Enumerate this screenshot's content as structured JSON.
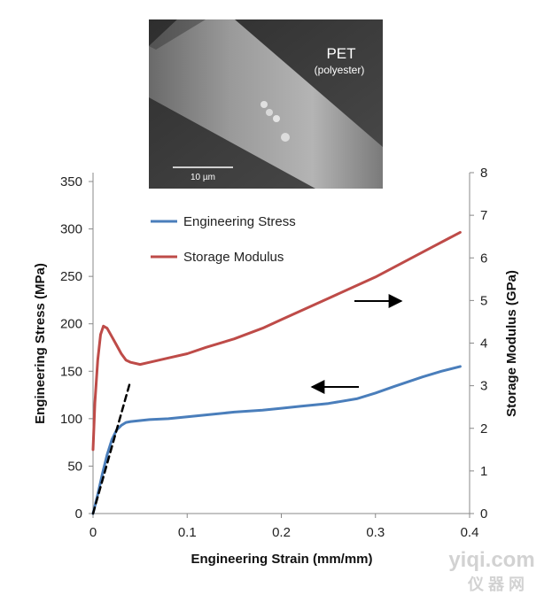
{
  "inset_image": {
    "material_label": "PET",
    "material_sublabel": "(polyester)",
    "scale_bar_label": "10 µm"
  },
  "watermark": {
    "line1": "yiqi.com",
    "line2": "仪 器 网"
  },
  "chart_data": {
    "type": "line",
    "xlabel": "Engineering Strain (mm/mm)",
    "ylabel_left": "Engineering Stress (MPa)",
    "ylabel_right": "Storage Modulus (GPa)",
    "xlim": [
      0,
      0.4
    ],
    "ylim_left": [
      0,
      350
    ],
    "ylim_right": [
      0,
      8
    ],
    "x_ticks": [
      "0",
      "0.1",
      "0.2",
      "0.3",
      "0.4"
    ],
    "y_ticks_left": [
      "0",
      "50",
      "100",
      "150",
      "200",
      "250",
      "300",
      "350"
    ],
    "y_ticks_right": [
      "0",
      "1",
      "2",
      "3",
      "4",
      "5",
      "6",
      "7",
      "8"
    ],
    "grid": false,
    "legend_position": "top-left",
    "series": [
      {
        "name": "Engineering Stress",
        "axis": "left",
        "color": "#4a7ebb",
        "x": [
          0,
          0.005,
          0.01,
          0.015,
          0.02,
          0.025,
          0.03,
          0.035,
          0.04,
          0.05,
          0.06,
          0.08,
          0.1,
          0.12,
          0.15,
          0.18,
          0.2,
          0.22,
          0.25,
          0.28,
          0.3,
          0.32,
          0.35,
          0.37,
          0.39
        ],
        "y": [
          0,
          20,
          42,
          62,
          78,
          88,
          93,
          96,
          97,
          98,
          99,
          100,
          102,
          104,
          107,
          109,
          111,
          113,
          116,
          121,
          127,
          134,
          144,
          150,
          155
        ]
      },
      {
        "name": "Storage Modulus",
        "axis": "right",
        "color": "#be4b48",
        "x": [
          0,
          0.002,
          0.005,
          0.008,
          0.011,
          0.015,
          0.02,
          0.025,
          0.03,
          0.035,
          0.04,
          0.05,
          0.06,
          0.08,
          0.1,
          0.12,
          0.15,
          0.18,
          0.2,
          0.22,
          0.25,
          0.28,
          0.3,
          0.33,
          0.36,
          0.39
        ],
        "y": [
          1.5,
          2.6,
          3.6,
          4.2,
          4.4,
          4.35,
          4.15,
          3.95,
          3.75,
          3.6,
          3.55,
          3.5,
          3.55,
          3.65,
          3.75,
          3.9,
          4.1,
          4.35,
          4.55,
          4.75,
          5.05,
          5.35,
          5.55,
          5.9,
          6.25,
          6.6
        ]
      },
      {
        "name": "",
        "axis": "left",
        "color": "#000000",
        "style": "dashed",
        "x": [
          0,
          0.039
        ],
        "y": [
          0,
          137
        ]
      }
    ],
    "annotations": [
      {
        "type": "arrow",
        "direction": "left",
        "points_to_axis": "left"
      },
      {
        "type": "arrow",
        "direction": "right",
        "points_to_axis": "right"
      }
    ]
  }
}
